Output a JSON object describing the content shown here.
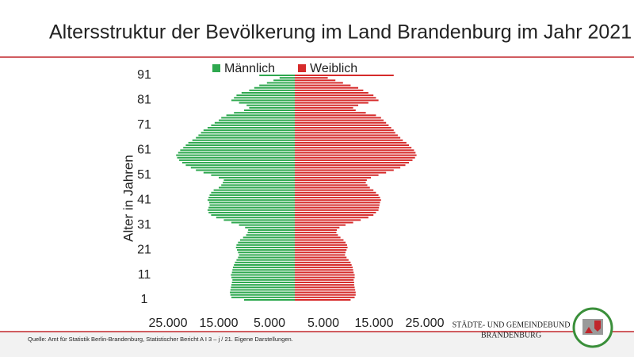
{
  "chart_data": {
    "type": "pyramid",
    "title": "Altersstruktur der Bevölkerung im Land Brandenburg im Jahr 2021",
    "y_label": "Alter in Jahren",
    "legend": "top",
    "categories": [
      "1",
      null,
      null,
      null,
      null,
      null,
      null,
      null,
      null,
      null,
      "11",
      null,
      null,
      null,
      null,
      null,
      null,
      null,
      null,
      null,
      "21",
      null,
      null,
      null,
      null,
      null,
      null,
      null,
      null,
      null,
      "31",
      null,
      null,
      null,
      null,
      null,
      null,
      null,
      null,
      null,
      "41",
      null,
      null,
      null,
      null,
      null,
      null,
      null,
      null,
      null,
      "51",
      null,
      null,
      null,
      null,
      null,
      null,
      null,
      null,
      null,
      "61",
      null,
      null,
      null,
      null,
      null,
      null,
      null,
      null,
      null,
      "71",
      null,
      null,
      null,
      null,
      null,
      null,
      null,
      null,
      null,
      "81",
      null,
      null,
      null,
      null,
      null,
      null,
      null,
      null,
      null,
      "91"
    ],
    "series": [
      {
        "name": "Männlich",
        "color": "#2ea84f",
        "side": "left",
        "values": [
          10000,
          12500,
          12700,
          12800,
          12700,
          12600,
          12500,
          12400,
          12300,
          12500,
          12600,
          12400,
          12300,
          12200,
          12000,
          11800,
          11500,
          11200,
          11000,
          11200,
          11400,
          11600,
          11500,
          11200,
          10800,
          10200,
          9600,
          9300,
          9200,
          9800,
          11000,
          12500,
          14000,
          15500,
          16500,
          17000,
          17200,
          17000,
          16800,
          16900,
          17200,
          17000,
          16800,
          16500,
          16000,
          15000,
          14500,
          14200,
          14000,
          15000,
          16500,
          18000,
          19500,
          20500,
          21500,
          22200,
          22800,
          23200,
          23400,
          23000,
          22600,
          22000,
          21500,
          21000,
          20200,
          19500,
          19000,
          18500,
          18000,
          17200,
          16500,
          15800,
          15000,
          14500,
          13500,
          12000,
          10000,
          9000,
          9500,
          11000,
          12500,
          12000,
          11500,
          10500,
          9000,
          8000,
          7000,
          5500,
          4200,
          3000,
          7000
        ]
      },
      {
        "name": "Weiblich",
        "color": "#d62b2b",
        "side": "right",
        "values": [
          11000,
          11800,
          12000,
          12000,
          11900,
          11800,
          11700,
          11700,
          11600,
          11800,
          11800,
          11600,
          11500,
          11400,
          11200,
          11000,
          10600,
          10200,
          9900,
          10000,
          10200,
          10400,
          10300,
          10000,
          9600,
          9000,
          8500,
          8200,
          8300,
          8800,
          10000,
          11500,
          13000,
          14500,
          15500,
          16000,
          16500,
          16600,
          16700,
          16800,
          17000,
          16800,
          16500,
          16000,
          15500,
          14800,
          14300,
          14000,
          14200,
          15000,
          16500,
          18000,
          19500,
          20800,
          21800,
          22500,
          23200,
          23700,
          24000,
          23800,
          23500,
          23000,
          22500,
          22000,
          21300,
          20800,
          20300,
          19800,
          19500,
          19000,
          18500,
          18000,
          17500,
          17000,
          16000,
          14000,
          12000,
          11500,
          12500,
          14500,
          16500,
          16000,
          15500,
          14500,
          13500,
          12500,
          11000,
          9500,
          8000,
          6500,
          19500
        ]
      }
    ],
    "xlim": [
      0,
      25000
    ],
    "xticks": [
      {
        "value": 5000,
        "label": "5.000"
      },
      {
        "value": 15000,
        "label": "15.000"
      },
      {
        "value": 25000,
        "label": "25.000"
      }
    ]
  },
  "footer": {
    "source": "Quelle: Amt für Statistik Berlin-Brandenburg, Statistischer Bericht A I 3 – j / 21. Eigene Darstellungen.",
    "logo_lines": [
      "STÄDTE- UND GEMEINDEBUND",
      "BRANDENBURG"
    ]
  }
}
